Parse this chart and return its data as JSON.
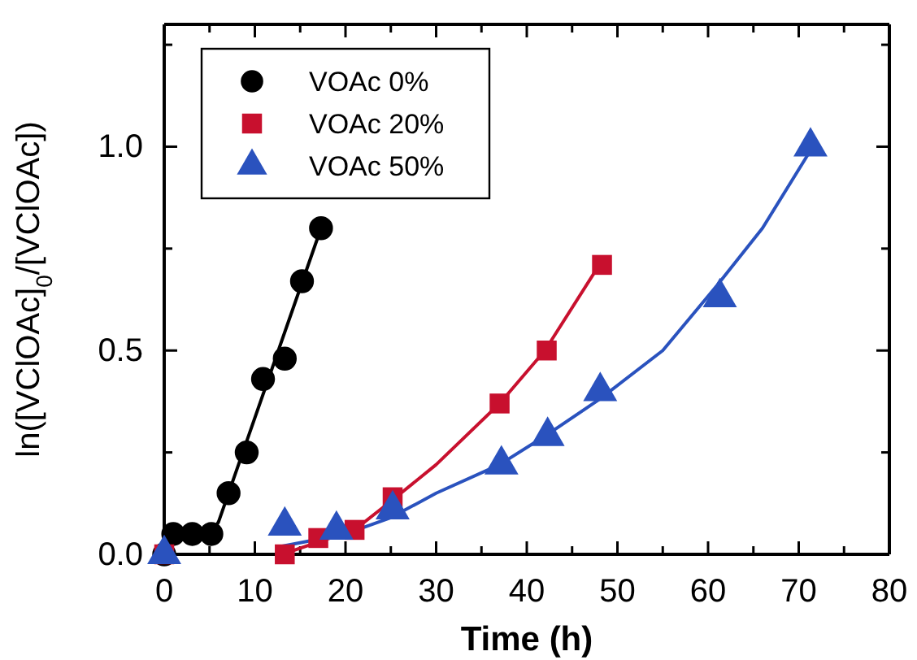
{
  "chart_data": {
    "type": "scatter",
    "xlabel": "Time (h)",
    "ylabel": "ln([VClOAc]$_{0}$/[VClOAc])",
    "xlim": [
      0,
      80
    ],
    "ylim": [
      0,
      1.3
    ],
    "xticks": [
      0,
      {
        "value": 5,
        "label": null
      },
      10,
      {
        "value": 15,
        "label": null
      },
      20,
      {
        "value": 25,
        "label": null
      },
      30,
      {
        "value": 35,
        "label": null
      },
      40,
      {
        "value": 45,
        "label": null
      },
      50,
      {
        "value": 55,
        "label": null
      },
      60,
      {
        "value": 65,
        "label": null
      },
      70,
      {
        "value": 75,
        "label": null
      },
      80
    ],
    "yticks": [
      {
        "value": 0,
        "label": "0.0"
      },
      {
        "value": 0.25,
        "label": null
      },
      {
        "value": 0.5,
        "label": "0.5"
      },
      {
        "value": 0.75,
        "label": null
      },
      {
        "value": 1.0,
        "label": "1.0"
      },
      {
        "value": 1.25,
        "label": null
      }
    ],
    "legend": "top left",
    "series": [
      {
        "name": "VOAc 0%",
        "color": "#000000",
        "marker": "circle",
        "x": [
          0,
          1,
          3.1,
          5.2,
          7.1,
          9.1,
          10.9,
          13.3,
          15.2,
          17.3
        ],
        "values": [
          0.0,
          0.05,
          0.05,
          0.05,
          0.15,
          0.25,
          0.43,
          0.48,
          0.67,
          0.8
        ]
      },
      {
        "name": "VOAc 20%",
        "color": "#c8102e",
        "marker": "square",
        "x": [
          0,
          13.3,
          17.0,
          21.0,
          25.2,
          37.0,
          42.2,
          48.3
        ],
        "values": [
          0.0,
          0.0,
          0.04,
          0.06,
          0.14,
          0.37,
          0.5,
          0.71
        ]
      },
      {
        "name": "VOAc 50%",
        "color": "#2a52be",
        "marker": "triangle",
        "x": [
          0,
          13.3,
          19.0,
          25.2,
          37.2,
          42.3,
          48.1,
          61.3,
          71.3
        ],
        "values": [
          0.0,
          0.07,
          0.06,
          0.11,
          0.22,
          0.29,
          0.4,
          0.63,
          1.0
        ]
      },
      {
        "type": "line",
        "color": "#000000",
        "marker": "none",
        "x": [
          0,
          5.2,
          6.0,
          17.3
        ],
        "values": [
          0.05,
          0.05,
          0.08,
          0.8
        ]
      },
      {
        "type": "line",
        "color": "#c8102e",
        "marker": "none",
        "x": [
          13,
          17,
          21,
          25,
          30,
          37,
          42,
          48
        ],
        "values": [
          0.0,
          0.03,
          0.06,
          0.13,
          0.22,
          0.37,
          0.5,
          0.71
        ]
      },
      {
        "type": "line",
        "color": "#2a52be",
        "marker": "none",
        "x": [
          13,
          20,
          25,
          30,
          37,
          42,
          48,
          55,
          61,
          66,
          71
        ],
        "values": [
          0.02,
          0.05,
          0.09,
          0.15,
          0.22,
          0.29,
          0.38,
          0.5,
          0.66,
          0.8,
          0.98
        ]
      }
    ]
  }
}
